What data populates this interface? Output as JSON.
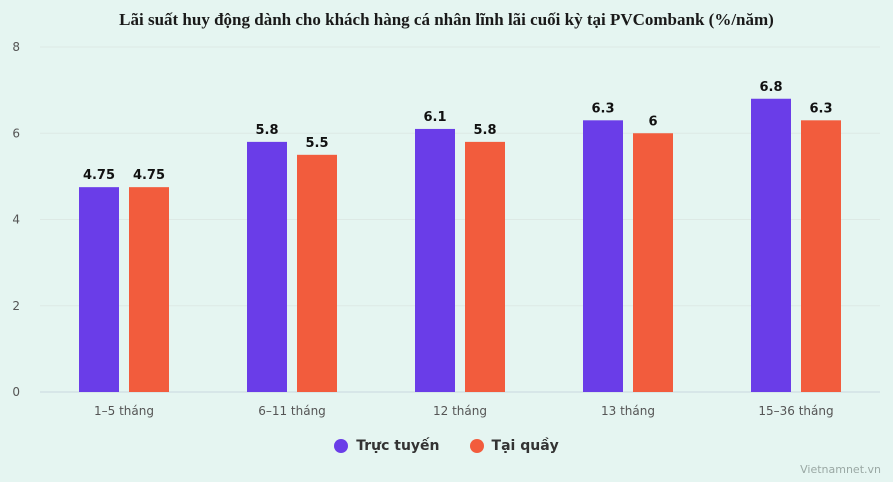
{
  "chart_data": {
    "type": "bar",
    "title": "Lãi suất huy động dành cho khách hàng cá nhân lĩnh lãi cuối kỳ tại PVCombank (%/năm)",
    "categories": [
      "1–5 tháng",
      "6–11 tháng",
      "12 tháng",
      "13 tháng",
      "15–36 tháng"
    ],
    "series": [
      {
        "name": "Trực tuyến",
        "values": [
          4.75,
          5.8,
          6.1,
          6.3,
          6.8
        ],
        "color": "#6a3de8"
      },
      {
        "name": "Tại quầy",
        "values": [
          4.75,
          5.5,
          5.8,
          6,
          6.3
        ],
        "color": "#f25c3d"
      }
    ],
    "value_labels": [
      [
        "4.75",
        "5.8",
        "6.1",
        "6.3",
        "6.8"
      ],
      [
        "4.75",
        "5.5",
        "5.8",
        "6",
        "6.3"
      ]
    ],
    "ylim": [
      0,
      8
    ],
    "yticks": [
      "0",
      "2",
      "4",
      "6",
      "8"
    ],
    "grid": true,
    "legend_position": "bottom"
  },
  "source": "Vietnamnet.vn"
}
